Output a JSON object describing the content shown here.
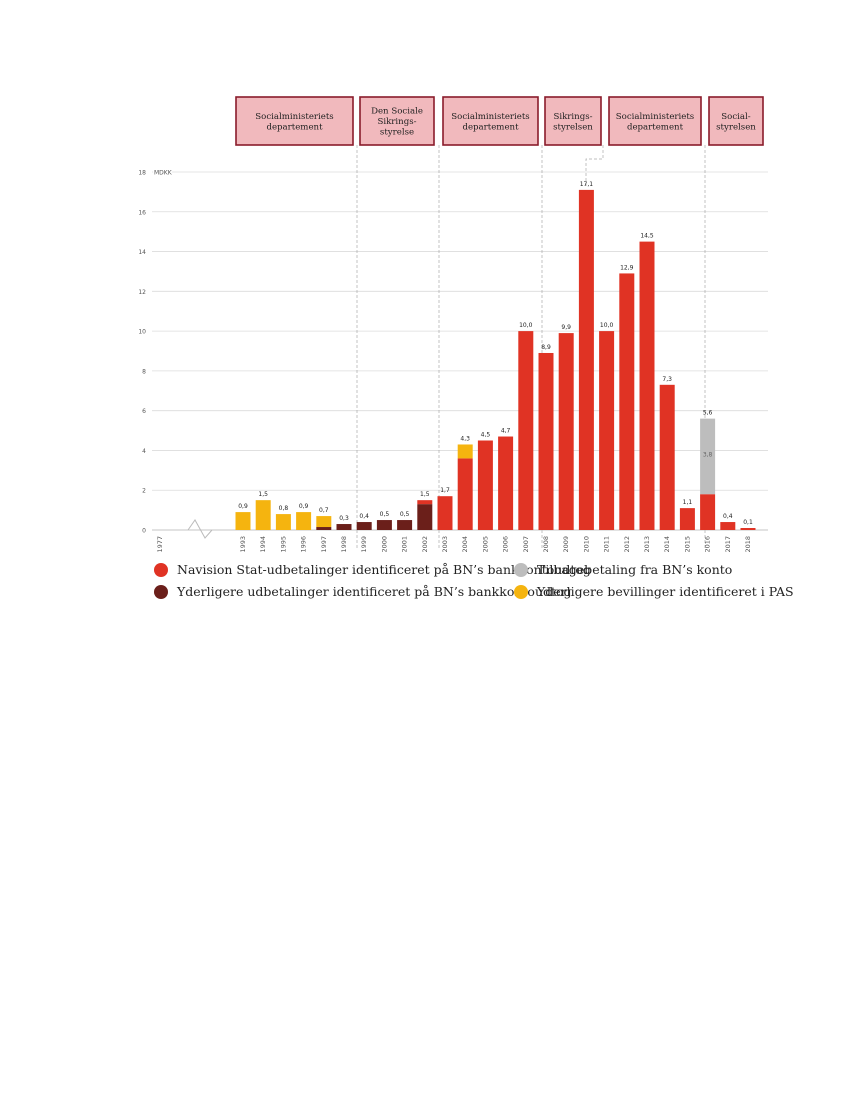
{
  "chart_data": {
    "type": "bar",
    "stacked": true,
    "unit_label": "MDKK",
    "ylim": [
      0,
      18
    ],
    "yticks": [
      0,
      2,
      4,
      6,
      8,
      10,
      12,
      14,
      16,
      18
    ],
    "grid": true,
    "axis_break_between": [
      "1977",
      "1993"
    ],
    "categories": [
      "1977",
      "1993",
      "1994",
      "1995",
      "1996",
      "1997",
      "1998",
      "1999",
      "2000",
      "2001",
      "2002",
      "2003",
      "2004",
      "2005",
      "2006",
      "2007",
      "2008",
      "2009",
      "2010",
      "2011",
      "2012",
      "2013",
      "2014",
      "2015",
      "2016",
      "2017",
      "2018"
    ],
    "series": [
      {
        "name": "Navision Stat-udbetalinger identificeret på BN's bankkontoudtog",
        "color": "#e03324",
        "values": [
          0,
          0,
          0,
          0,
          0,
          0,
          0,
          0,
          0,
          0,
          0.2,
          1.7,
          3.6,
          4.5,
          4.7,
          10.0,
          8.9,
          9.9,
          17.1,
          10.0,
          12.9,
          14.5,
          7.3,
          1.1,
          1.8,
          0.4,
          0.1
        ]
      },
      {
        "name": "Yderligere udbetalinger identificeret på BN's bankkontoudtog",
        "color": "#6b1f1a",
        "values": [
          0,
          0,
          0,
          0,
          0,
          0.15,
          0.3,
          0.4,
          0.5,
          0.5,
          1.3,
          0,
          0,
          0,
          0,
          0,
          0,
          0,
          0,
          0,
          0,
          0,
          0,
          0,
          0,
          0,
          0
        ]
      },
      {
        "name": "Tilbagebetaling fra BN's konto",
        "color": "#bdbdbd",
        "values": [
          0,
          0,
          0,
          0,
          0,
          0,
          0,
          0,
          0,
          0,
          0,
          0,
          0,
          0,
          0,
          0,
          0,
          0,
          0,
          0,
          0,
          0,
          0,
          0,
          3.8,
          0,
          0
        ]
      },
      {
        "name": "Yderligere bevillinger identificeret i PAS",
        "color": "#f5b40f",
        "values": [
          0,
          0.9,
          1.5,
          0.8,
          0.9,
          0.55,
          0,
          0,
          0,
          0,
          0,
          0,
          0.7,
          0,
          0,
          0,
          0,
          0,
          0,
          0,
          0,
          0,
          0,
          0,
          0,
          0,
          0
        ]
      }
    ],
    "total_labels": [
      "",
      "0,9",
      "1,5",
      "0,8",
      "0,9",
      "0,7",
      "0,3",
      "0,4",
      "0,5",
      "0,5",
      "1,5",
      "1,7",
      "4,3",
      "4,5",
      "4,7",
      "10,0",
      "8,9",
      "9,9",
      "17,1",
      "10,0",
      "12,9",
      "14,5",
      "7,3",
      "1,1",
      "5,6",
      "0,4",
      "0,1"
    ],
    "inner_labels": [
      {
        "category": "2016",
        "text": "3,8"
      }
    ],
    "ytick_labels": [
      "0",
      "2",
      "4",
      "6",
      "8",
      "10",
      "12",
      "14",
      "16",
      "18"
    ],
    "periods": [
      {
        "label": [
          "Socialministeriets",
          "departement"
        ],
        "from": "1993",
        "to": "1998"
      },
      {
        "label": [
          "Den Sociale",
          "Sikrings-",
          "styrelse"
        ],
        "from": "1999",
        "to": "2002"
      },
      {
        "label": [
          "Socialministeriets",
          "departement"
        ],
        "from": "2003",
        "to": "2007"
      },
      {
        "label": [
          "Sikrings-",
          "styrelsen"
        ],
        "from": "2008",
        "to": "2009"
      },
      {
        "label": [
          "Socialministeriets",
          "departement"
        ],
        "from": "2010",
        "to": "2014"
      },
      {
        "label": [
          "Social-",
          "styrelsen"
        ],
        "from": "2016",
        "to": "2018"
      }
    ]
  },
  "legend": [
    {
      "label": "Navision Stat-udbetalinger identificeret på BN’s bankkontoudtog",
      "color": "#e03324"
    },
    {
      "label": "Tilbagebetaling fra BN’s konto",
      "color": "#bdbdbd"
    },
    {
      "label": "Yderligere udbetalinger identificeret på BN’s bankkontoudtog",
      "color": "#6b1f1a"
    },
    {
      "label": "Yderligere bevillinger identificeret i PAS",
      "color": "#f5b40f"
    }
  ]
}
